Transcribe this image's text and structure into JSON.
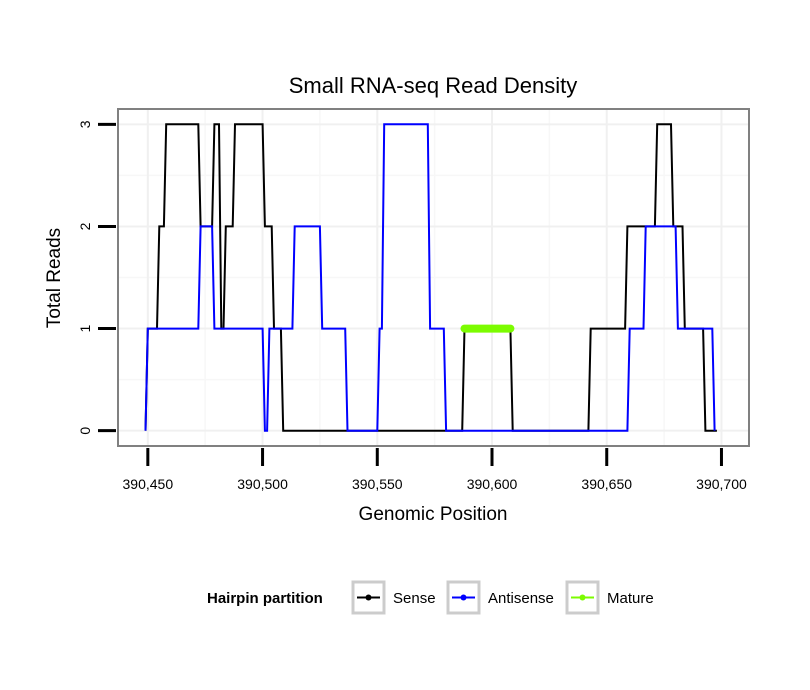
{
  "chart_data": {
    "type": "line",
    "title": "Small RNA-seq Read Density",
    "xlabel": "Genomic Position",
    "ylabel": "Total Reads",
    "xlim": [
      390437,
      390712
    ],
    "ylim": [
      -0.15,
      3.15
    ],
    "x_ticks": [
      390450,
      390500,
      390550,
      390600,
      390650,
      390700
    ],
    "x_tick_labels": [
      "390,450",
      "390,500",
      "390,550",
      "390,600",
      "390,650",
      "390,700"
    ],
    "y_ticks": [
      0,
      1,
      2,
      3
    ],
    "y_tick_labels": [
      "0",
      "1",
      "2",
      "3"
    ],
    "grid": true,
    "legend": {
      "title": "Hairpin partition",
      "position": "bottom",
      "entries": [
        "Sense",
        "Antisense",
        "Mature"
      ]
    },
    "series": [
      {
        "name": "Sense",
        "color": "#000000",
        "x": [
          390449,
          390450,
          390454,
          390455,
          390457,
          390458,
          390472,
          390473,
          390478,
          390479,
          390481,
          390482,
          390483,
          390484,
          390487,
          390488,
          390500,
          390501,
          390504,
          390505,
          390508,
          390509,
          390587,
          390588,
          390608,
          390609,
          390642,
          390643,
          390658,
          390659,
          390671,
          390672,
          390678,
          390679,
          390683,
          390684,
          390692,
          390693,
          390698
        ],
        "values": [
          0,
          1,
          1,
          2,
          2,
          3,
          3,
          2,
          2,
          3,
          3,
          1,
          1,
          2,
          2,
          3,
          3,
          2,
          2,
          1,
          1,
          0,
          0,
          1,
          1,
          0,
          0,
          1,
          1,
          2,
          2,
          3,
          3,
          2,
          2,
          1,
          1,
          0,
          0
        ]
      },
      {
        "name": "Antisense",
        "color": "#0000ff",
        "x": [
          390449,
          390450,
          390472,
          390473,
          390478,
          390479,
          390500,
          390501,
          390502,
          390503,
          390513,
          390514,
          390525,
          390526,
          390536,
          390537,
          390550,
          390551,
          390552,
          390553,
          390572,
          390573,
          390579,
          390580,
          390659,
          390660,
          390666,
          390667,
          390680,
          390681,
          390696,
          390697
        ],
        "values": [
          0,
          1,
          1,
          2,
          2,
          1,
          1,
          0,
          0,
          1,
          1,
          2,
          2,
          1,
          1,
          0,
          0,
          1,
          1,
          3,
          3,
          1,
          1,
          0,
          0,
          1,
          1,
          2,
          2,
          1,
          1,
          0
        ]
      },
      {
        "name": "Mature",
        "color": "#7cfc00",
        "x": [
          390588,
          390608
        ],
        "values": [
          1,
          1
        ]
      }
    ]
  }
}
